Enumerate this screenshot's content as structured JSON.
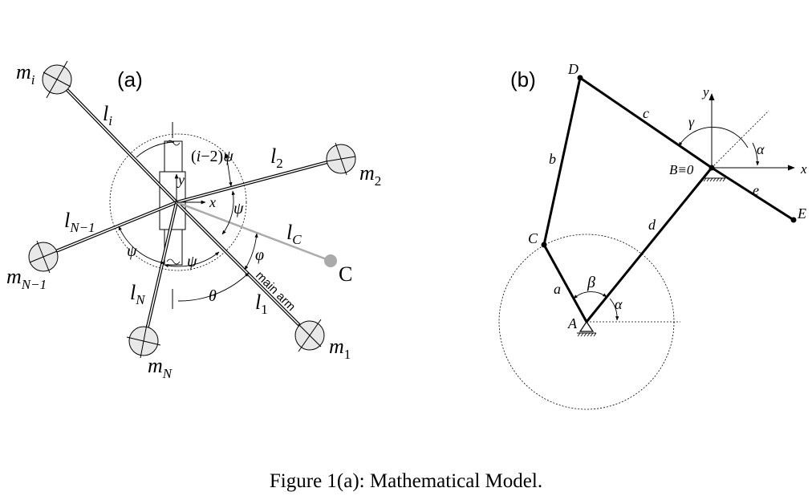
{
  "caption": "Figure 1(a): Mathematical Model.",
  "panel_a": {
    "letter": "(a)",
    "masses": {
      "mi": {
        "base": "m",
        "sub": "i"
      },
      "m2": {
        "base": "m",
        "sub": "2"
      },
      "mN1": {
        "base": "m",
        "sub": "N−1"
      },
      "mN": {
        "base": "m",
        "sub": "N"
      },
      "m1": {
        "base": "m",
        "sub": "1"
      }
    },
    "arms": {
      "li": {
        "base": "l",
        "sub": "i"
      },
      "l2": {
        "base": "l",
        "sub": "2"
      },
      "lN1": {
        "base": "l",
        "sub": "N−1"
      },
      "lN": {
        "base": "l",
        "sub": "N"
      },
      "l1": {
        "base": "l",
        "sub": "1"
      },
      "lC": {
        "base": "l",
        "sub": "C"
      }
    },
    "angles": {
      "i2psi_prefix": "(",
      "i2psi_i": "i",
      "i2psi_mid": "−2)",
      "psi": "ψ",
      "theta": "θ",
      "phi": "φ"
    },
    "axes": {
      "x": "x",
      "y": "y"
    },
    "point_c": "C",
    "main_arm": "main arm"
  },
  "panel_b": {
    "letter": "(b)",
    "points": {
      "A": "A",
      "B": "B≡0",
      "C": "C",
      "D": "D",
      "E": "E"
    },
    "links": {
      "a": "a",
      "b": "b",
      "c": "c",
      "d": "d",
      "e": "e"
    },
    "angles": {
      "alpha": "α",
      "beta": "β",
      "gamma": "γ"
    },
    "axes": {
      "x": "x",
      "y": "y"
    }
  }
}
